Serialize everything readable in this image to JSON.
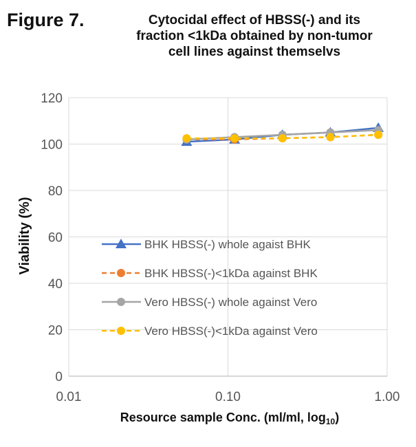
{
  "figure": {
    "label": "Figure 7.",
    "title": "Cytocidal effect of HBSS(-) and its\nfraction <1kDa obtained by non-tumor\ncell lines against themselvs"
  },
  "chart_data": {
    "type": "line",
    "xlabel": "Resource sample Conc. (ml/ml, log10)",
    "ylabel": "Viability (%)",
    "xscale": "log",
    "xlim": [
      0.01,
      1.0
    ],
    "ylim": [
      0,
      120
    ],
    "xticks": [
      "0.01",
      "0.10",
      "1.00"
    ],
    "yticks": [
      "0",
      "20",
      "40",
      "60",
      "80",
      "100",
      "120"
    ],
    "grid": true,
    "legend_position": "center",
    "series": [
      {
        "name": "BHK HBSS(-) whole agaist BHK",
        "color": "#4472C4",
        "marker": "triangle",
        "dash": "solid",
        "x": [
          0.055,
          0.11,
          0.22,
          0.44,
          0.88
        ],
        "y": [
          101,
          102,
          104,
          105,
          107
        ]
      },
      {
        "name": "BHK HBSS(-)<1kDa against BHK",
        "color": "#ED7D31",
        "marker": "circle",
        "dash": "dashed",
        "x": [
          0.055,
          0.11,
          0.22,
          0.44,
          0.88
        ],
        "y": [
          102,
          102,
          102.5,
          103,
          104
        ]
      },
      {
        "name": "Vero HBSS(-) whole against Vero",
        "color": "#A5A5A5",
        "marker": "circle",
        "dash": "solid",
        "x": [
          0.055,
          0.11,
          0.22,
          0.44,
          0.88
        ],
        "y": [
          102,
          103,
          104,
          105,
          106
        ]
      },
      {
        "name": "Vero HBSS(-)<1kDa against Vero",
        "color": "#FFC000",
        "marker": "circle",
        "dash": "dashed",
        "x": [
          0.055,
          0.11,
          0.22,
          0.44,
          0.88
        ],
        "y": [
          102.5,
          102.5,
          102.5,
          103,
          104
        ]
      }
    ]
  }
}
